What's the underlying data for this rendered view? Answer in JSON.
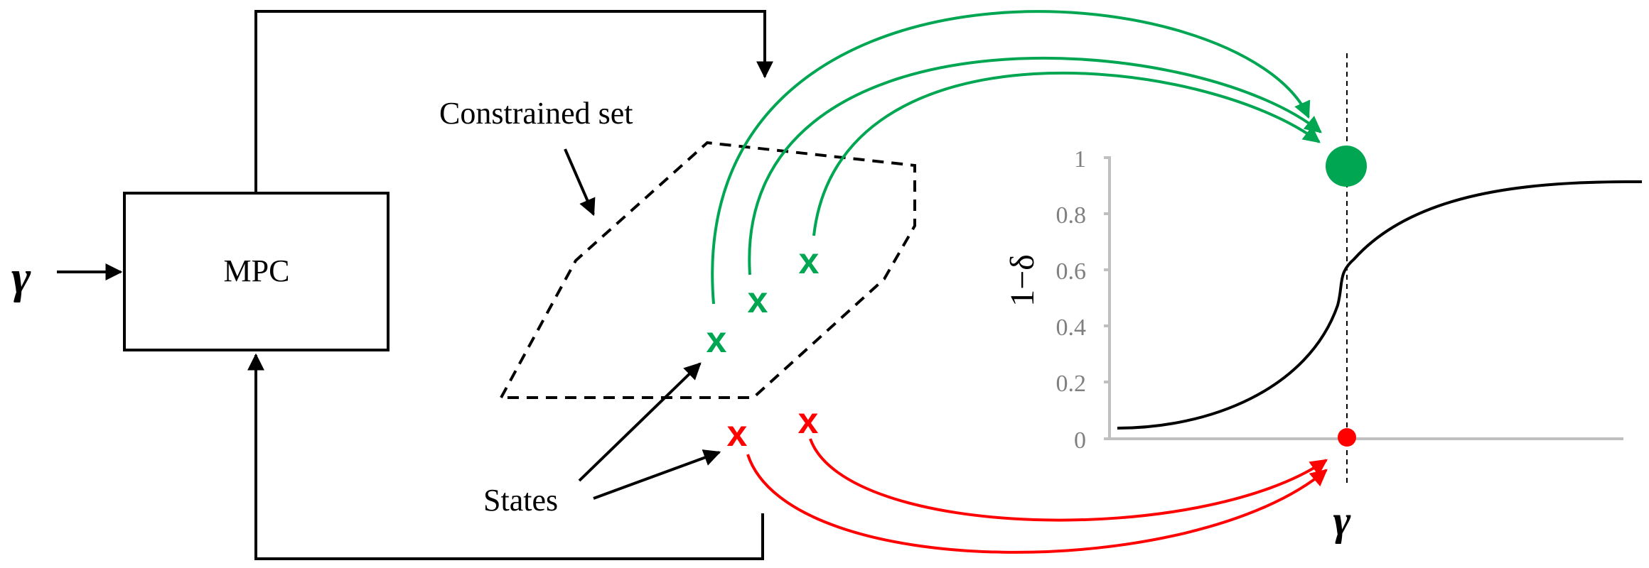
{
  "input_label": "γ",
  "mpc_label": "MPC",
  "constrained_set_label": "Constrained set",
  "states_label": "States",
  "state_marker": "x",
  "plot": {
    "y_axis_label": "1−δ",
    "x_axis_label": "γ",
    "y_ticks": [
      "0",
      "0.2",
      "0.4",
      "0.6",
      "0.8",
      "1"
    ]
  },
  "colors": {
    "feasible": "#00a651",
    "infeasible": "#ff0000",
    "axis": "#c0c0c0",
    "tick_text": "#808080",
    "line": "#000000"
  }
}
